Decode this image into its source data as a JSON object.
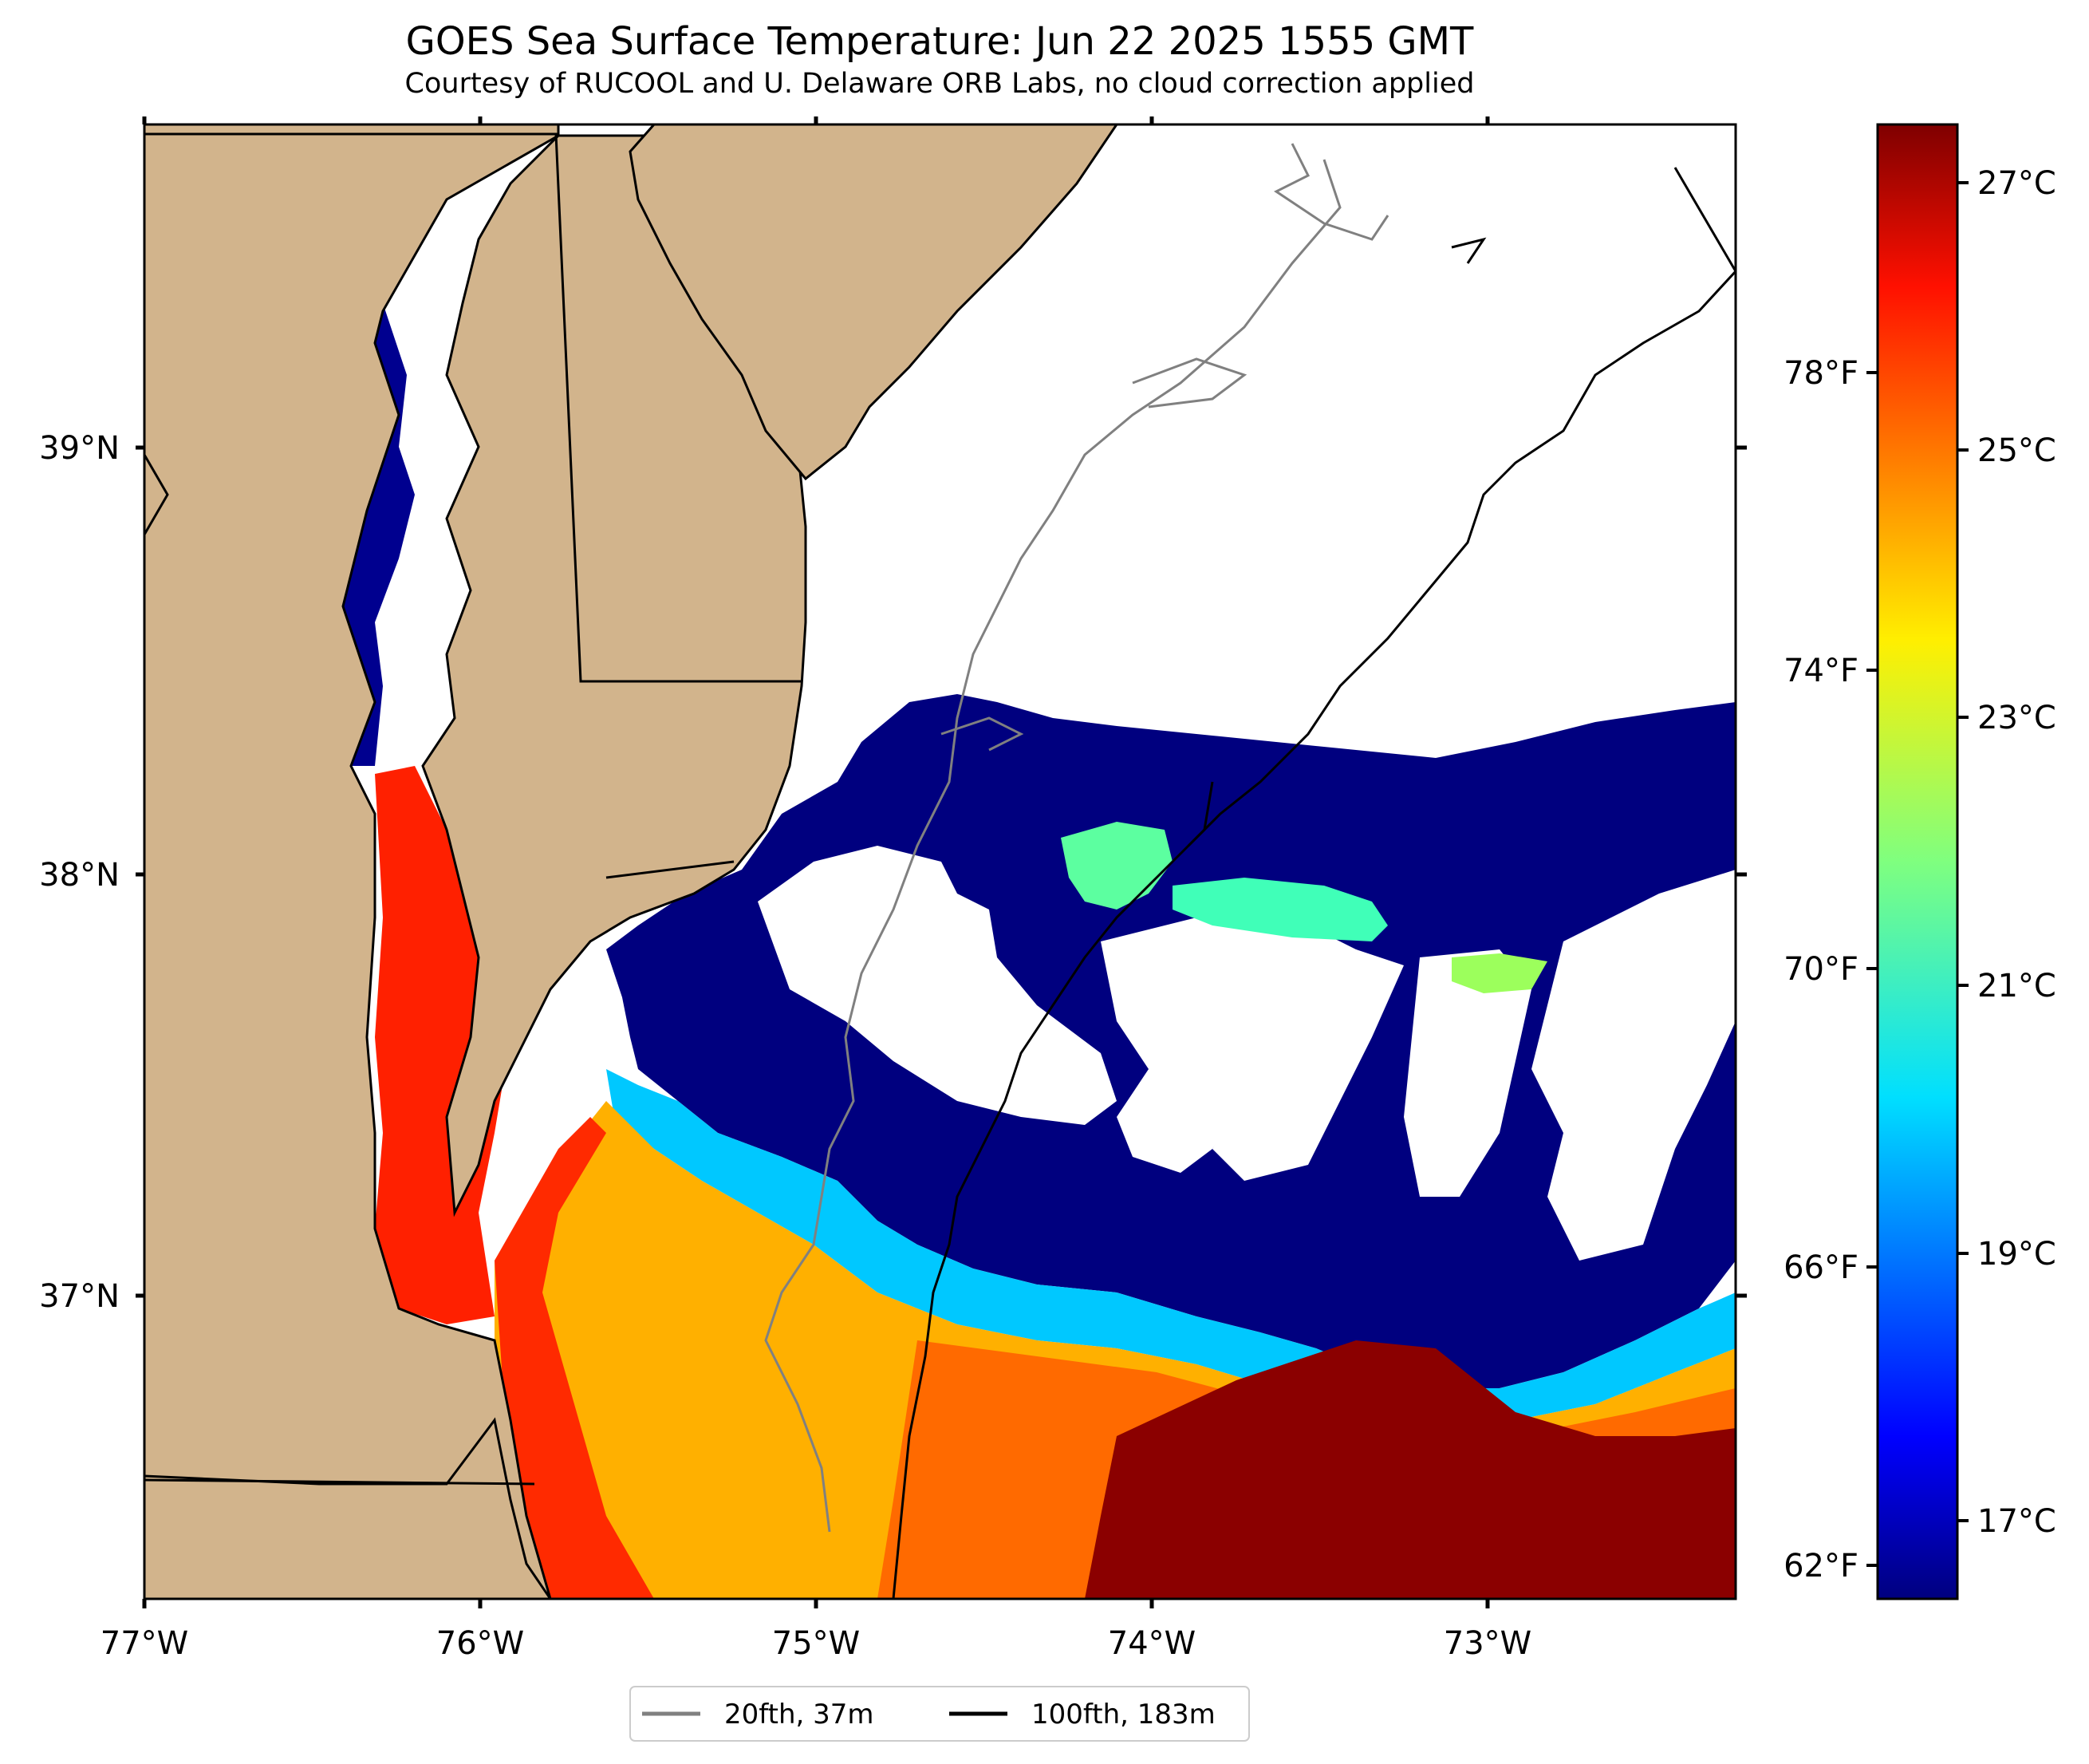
{
  "title": "GOES Sea Surface Temperature: Jun 22 2025 1555 GMT",
  "subtitle": "Courtesy of RUCOOL and U. Delaware ORB Labs, no cloud correction applied",
  "map": {
    "lon_ticks": [
      "77°W",
      "76°W",
      "75°W",
      "74°W",
      "73°W"
    ],
    "lat_ticks": [
      "39°N",
      "38°N",
      "37°N"
    ],
    "land_color": "#d2b48c",
    "cloud_color": "#ffffff"
  },
  "legend": {
    "items": [
      {
        "label": "20fth, 37m",
        "color": "#808080"
      },
      {
        "label": "100fth, 183m",
        "color": "#000000"
      }
    ]
  },
  "colorbar": {
    "colormap": "jet",
    "celsius_ticks": [
      "27°C",
      "25°C",
      "23°C",
      "21°C",
      "19°C",
      "17°C"
    ],
    "fahrenheit_ticks": [
      "78°F",
      "74°F",
      "70°F",
      "66°F",
      "62°F"
    ]
  }
}
